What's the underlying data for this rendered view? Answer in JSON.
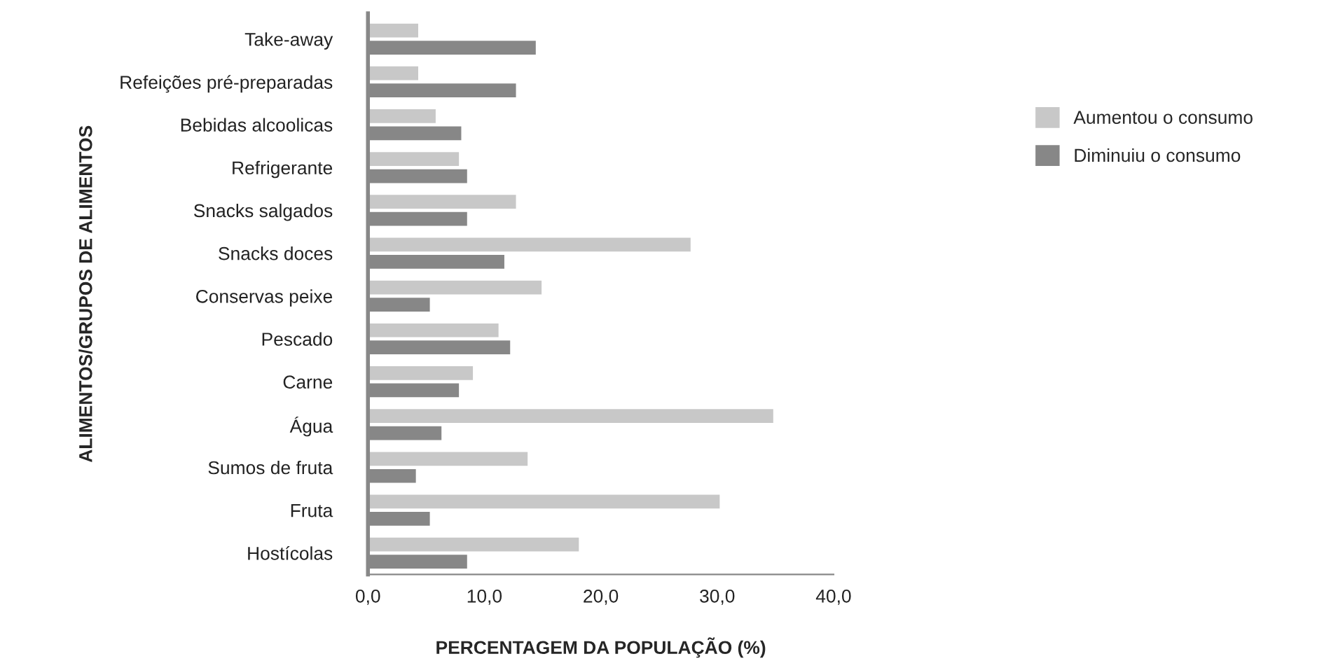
{
  "chart_data": {
    "type": "bar",
    "orientation": "horizontal",
    "xlabel": "PERCENTAGEM DA POPULAÇÃO (%)",
    "ylabel": "ALIMENTOS/GRUPOS DE ALIMENTOS",
    "categories": [
      "Take-away",
      "Refeições pré-preparadas",
      "Bebidas alcoolicas",
      "Refrigerante",
      "Snacks salgados",
      "Snacks doces",
      "Conservas peixe",
      "Pescado",
      "Carne",
      "Água",
      "Sumos de fruta",
      "Fruta",
      "Hostícolas"
    ],
    "series": [
      {
        "name": "Aumentou o consumo",
        "color": "#c8c8c8",
        "values": [
          4.4,
          4.4,
          5.9,
          7.9,
          12.8,
          27.8,
          15.0,
          11.3,
          9.1,
          34.9,
          13.8,
          30.3,
          18.2
        ]
      },
      {
        "name": "Diminuiu o consumo",
        "color": "#878787",
        "values": [
          14.5,
          12.8,
          8.1,
          8.6,
          8.6,
          11.8,
          5.4,
          12.3,
          7.9,
          6.4,
          4.2,
          5.4,
          8.6
        ]
      }
    ],
    "xlim": [
      0,
      40
    ],
    "xticks": [
      {
        "value": 0,
        "label": "0,0"
      },
      {
        "value": 10,
        "label": "10,0"
      },
      {
        "value": 20,
        "label": "20,0"
      },
      {
        "value": 30,
        "label": "30,0"
      },
      {
        "value": 40,
        "label": "40,0"
      }
    ],
    "grid": false,
    "legend": "right"
  }
}
